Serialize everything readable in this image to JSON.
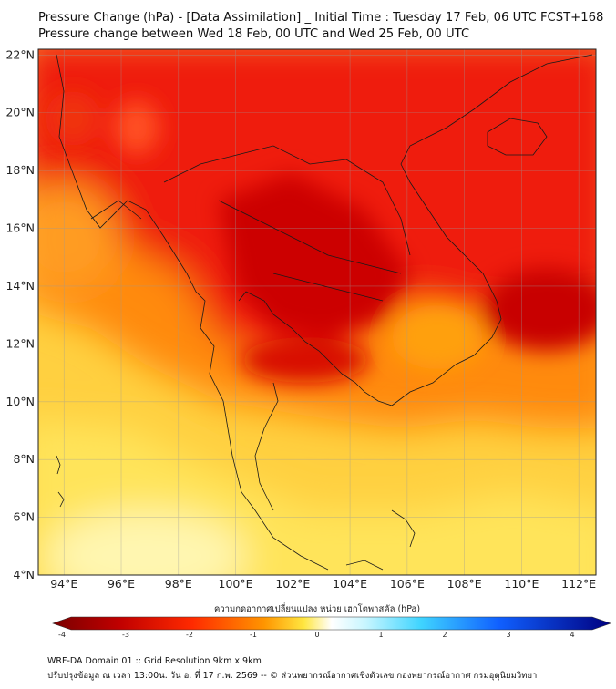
{
  "title_line1": "Pressure Change (hPa) - [Data Assimilation] _ Initial Time : Tuesday 17 Feb, 06 UTC FCST+168",
  "title_line2": "Pressure change between Wed 18 Feb, 00 UTC and Wed 25 Feb, 00 UTC",
  "map": {
    "lat_labels": [
      "22°N",
      "20°N",
      "18°N",
      "16°N",
      "14°N",
      "12°N",
      "10°N",
      "8°N",
      "6°N",
      "4°N"
    ],
    "lon_labels": [
      "94°E",
      "96°E",
      "98°E",
      "100°E",
      "102°E",
      "104°E",
      "106°E",
      "108°E",
      "110°E",
      "112°E"
    ],
    "lat_range": [
      4,
      22.2
    ],
    "lon_range": [
      93.1,
      112.6
    ],
    "gridlines": true
  },
  "colorbar": {
    "title": "ความกดอากาศเปลี่ยนแปลง หน่วย เฮกโตพาสคัล (hPa)",
    "ticks": [
      "-4",
      "-3",
      "-2",
      "-1",
      "0",
      "1",
      "2",
      "3",
      "4"
    ],
    "range": [
      -4,
      4
    ],
    "colors": [
      "#7a0000",
      "#d00000",
      "#ff3000",
      "#ff9a00",
      "#ffe640",
      "#ffffff",
      "#5fe0ff",
      "#1060ff",
      "#000080"
    ]
  },
  "footer_line1": "WRF-DA Domain 01 :: Grid Resolution 9km x 9km",
  "footer_line2": "ปรับปรุงข้อมูล ณ เวลา 13:00น. วัน อ. ที่ 17 ก.พ. 2569 -- © ส่วนพยากรณ์อากาศเชิงตัวเลข กองพยากรณ์อากาศ กรมอุตุนิยมวิทยา"
}
